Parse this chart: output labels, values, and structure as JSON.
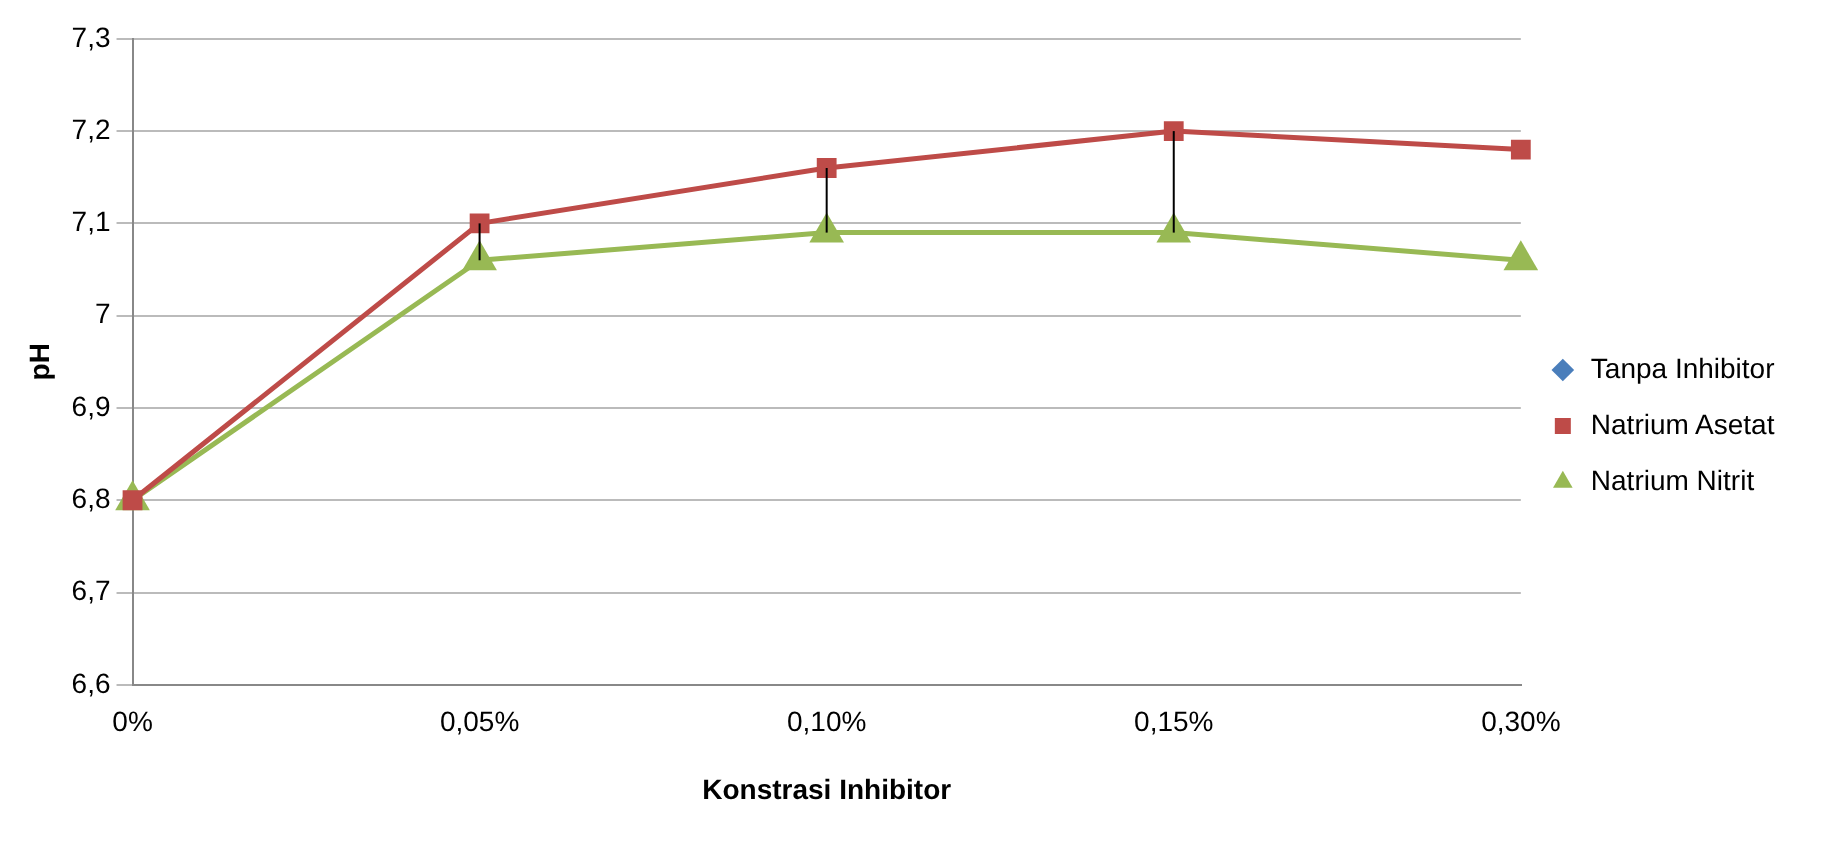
{
  "chart_data": {
    "type": "line",
    "xlabel": "Konstrasi Inhibitor",
    "ylabel": "pH",
    "categories": [
      "0%",
      "0,05%",
      "0,10%",
      "0,15%",
      "0,30%"
    ],
    "series": [
      {
        "name": "Tanpa Inhibitor",
        "color": "#4a7ebb",
        "marker": "diamond",
        "values": [
          null,
          null,
          null,
          null,
          null
        ]
      },
      {
        "name": "Natrium Asetat",
        "color": "#be4b48",
        "marker": "square",
        "values": [
          6.8,
          7.1,
          7.16,
          7.2,
          7.18
        ],
        "errors": [
          null,
          [
            7.06,
            7.1
          ],
          [
            7.09,
            7.16
          ],
          [
            7.09,
            7.2
          ],
          null
        ]
      },
      {
        "name": "Natrium Nitrit",
        "color": "#98b954",
        "marker": "triangle",
        "values": [
          6.8,
          7.06,
          7.09,
          7.09,
          7.06
        ]
      }
    ],
    "ylim": [
      6.6,
      7.3
    ],
    "yticks": [
      {
        "value": 6.6,
        "label": "6,6"
      },
      {
        "value": 6.7,
        "label": "6,7"
      },
      {
        "value": 6.8,
        "label": "6,8"
      },
      {
        "value": 6.9,
        "label": "6,9"
      },
      {
        "value": 7,
        "label": "7"
      },
      {
        "value": 7.1,
        "label": "7,1"
      },
      {
        "value": 7.2,
        "label": "7,2"
      },
      {
        "value": 7.3,
        "label": "7,3"
      }
    ],
    "grid": "y",
    "legend": "right"
  }
}
